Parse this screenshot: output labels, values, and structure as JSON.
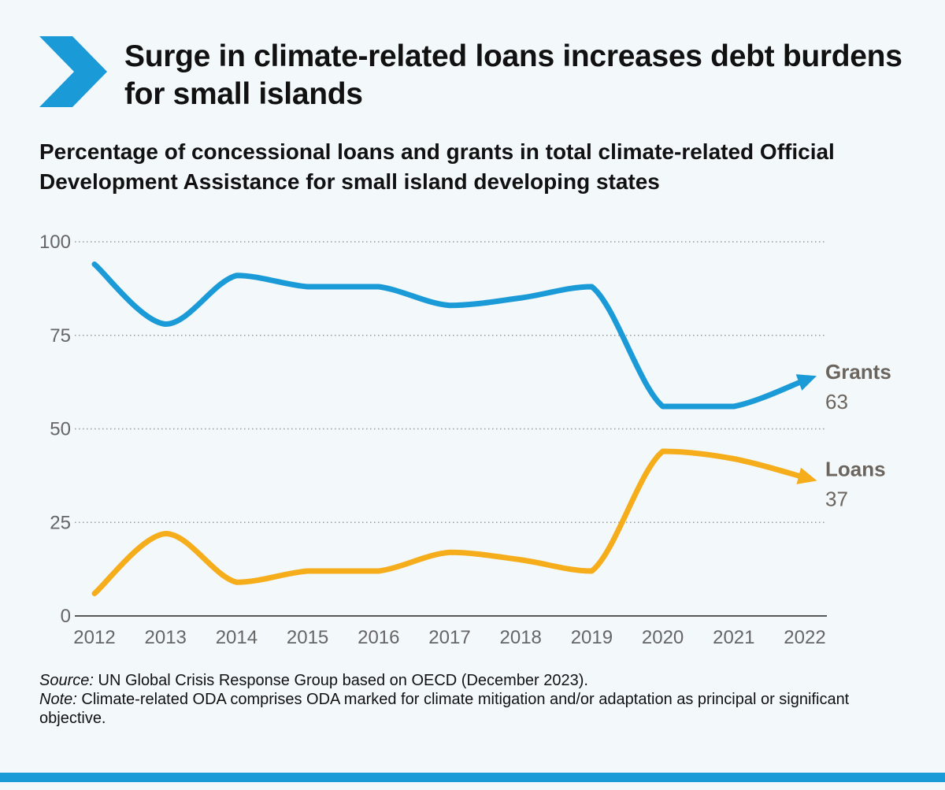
{
  "title": "Surge in climate-related loans increases debt burdens for small islands",
  "subtitle": "Percentage of concessional loans and grants in total climate-related Official Development Assistance for small island developing states",
  "colors": {
    "accent": "#1a9ad6",
    "grants": "#1a9ad6",
    "loans": "#f6ad1b",
    "label": "#6b655e"
  },
  "chart_data": {
    "type": "line",
    "x": [
      "2012",
      "2013",
      "2014",
      "2015",
      "2016",
      "2017",
      "2018",
      "2019",
      "2020",
      "2021",
      "2022"
    ],
    "series": [
      {
        "name": "Grants",
        "values": [
          94,
          78,
          91,
          88,
          88,
          83,
          85,
          88,
          56,
          56,
          63
        ],
        "end_label": "63"
      },
      {
        "name": "Loans",
        "values": [
          6,
          22,
          9,
          12,
          12,
          17,
          15,
          12,
          44,
          42,
          37
        ],
        "end_label": "37"
      }
    ],
    "yticks": [
      "0",
      "25",
      "50",
      "75",
      "100"
    ],
    "ylim": [
      0,
      100
    ],
    "grid": true,
    "title": "Percentage of concessional loans and grants in total climate-related Official Development Assistance for small island developing states"
  },
  "footer": {
    "source_label": "Source:",
    "source_text": " UN Global Crisis Response Group based on OECD (December 2023).",
    "note_label": "Note:",
    "note_text": " Climate-related ODA comprises ODA marked for climate mitigation and/or adaptation as principal or significant objective."
  }
}
